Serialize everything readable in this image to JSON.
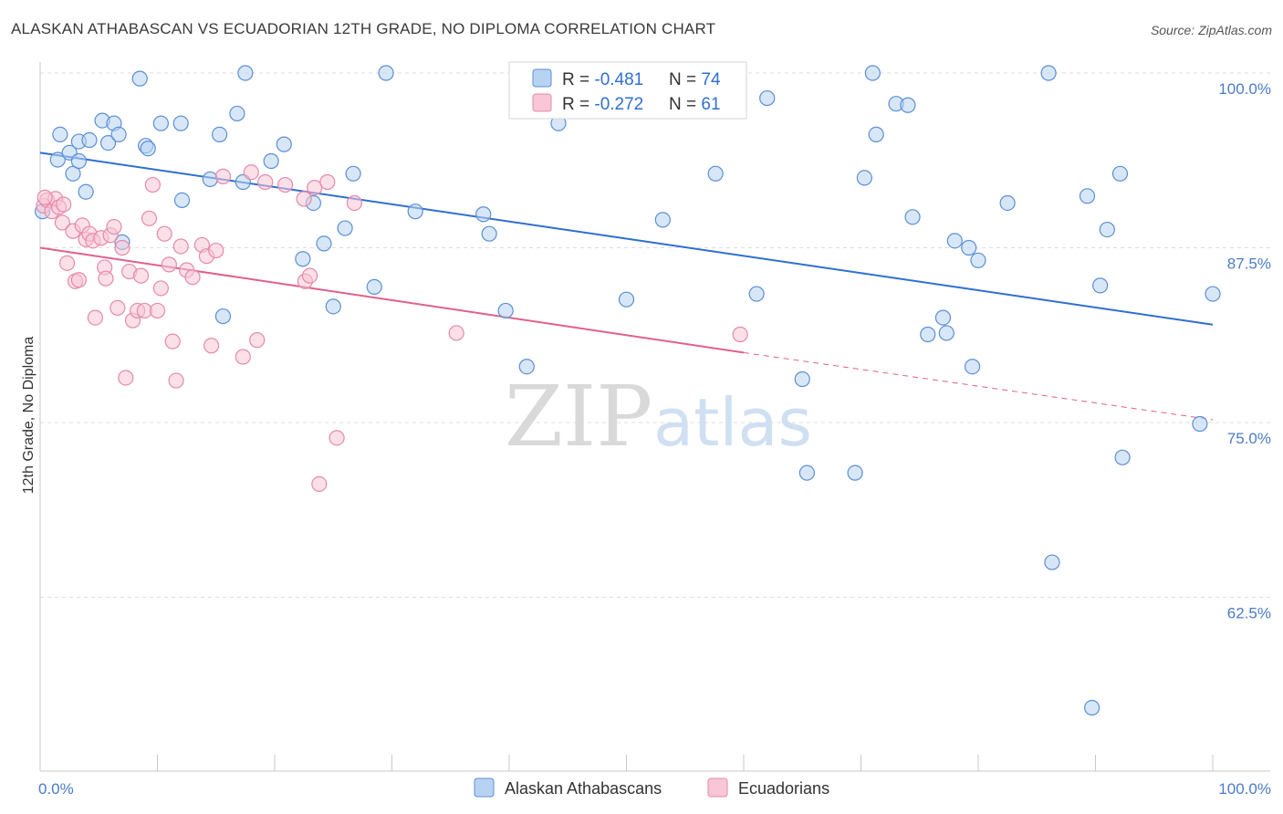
{
  "header": {
    "title": "ALASKAN ATHABASCAN VS ECUADORIAN 12TH GRADE, NO DIPLOMA CORRELATION CHART",
    "source": "Source: ZipAtlas.com"
  },
  "watermark": {
    "zip": "ZIP",
    "atlas": "atlas"
  },
  "colors": {
    "blue_fill": "#b8d3f2",
    "blue_stroke": "#5b8fd6",
    "blue_line": "#2f6fd1",
    "pink_fill": "#f8c6d6",
    "pink_stroke": "#e58aaa",
    "pink_line": "#e0608e",
    "tick_label": "#4a7cc9",
    "grid": "#dddddd"
  },
  "legend": {
    "rows": [
      {
        "r_label": "R = ",
        "r_value": "-0.481",
        "n_label": "N = ",
        "n_value": "74"
      },
      {
        "r_label": "R = ",
        "r_value": "-0.272",
        "n_label": "N = ",
        "n_value": "61"
      }
    ]
  },
  "chart_data": {
    "type": "scatter",
    "title": "ALASKAN ATHABASCAN VS ECUADORIAN 12TH GRADE, NO DIPLOMA CORRELATION CHART",
    "xlabel": "",
    "ylabel": "12th Grade, No Diploma",
    "xlim": [
      0,
      100
    ],
    "ylim": [
      50.5,
      101.5
    ],
    "x_tick_labels": [
      "0.0%",
      "100.0%"
    ],
    "y_ticks": [
      100,
      87.5,
      75,
      62.5
    ],
    "y_tick_labels": [
      "100.0%",
      "87.5%",
      "75.0%",
      "62.5%"
    ],
    "grid": true,
    "legend_placement": "top-center",
    "series": [
      {
        "name": "Alaskan Athabascans",
        "r": -0.481,
        "n": 74,
        "trend": {
          "x": [
            0,
            100
          ],
          "y": [
            94.3,
            82.0
          ],
          "extend_to": 100
        },
        "points": [
          [
            0.2,
            90.1
          ],
          [
            1.5,
            93.8
          ],
          [
            1.7,
            95.6
          ],
          [
            2.5,
            94.3
          ],
          [
            2.8,
            92.8
          ],
          [
            3.3,
            95.1
          ],
          [
            3.9,
            91.5
          ],
          [
            4.2,
            95.2
          ],
          [
            5.3,
            96.6
          ],
          [
            5.8,
            95.0
          ],
          [
            6.3,
            96.4
          ],
          [
            6.7,
            95.6
          ],
          [
            7.0,
            87.9
          ],
          [
            8.5,
            99.6
          ],
          [
            9.0,
            94.8
          ],
          [
            9.2,
            94.6
          ],
          [
            10.3,
            96.4
          ],
          [
            12.0,
            96.4
          ],
          [
            12.1,
            90.9
          ],
          [
            14.5,
            92.4
          ],
          [
            15.3,
            95.6
          ],
          [
            15.6,
            82.6
          ],
          [
            16.8,
            97.1
          ],
          [
            17.3,
            92.2
          ],
          [
            17.5,
            100.0
          ],
          [
            19.7,
            93.7
          ],
          [
            20.8,
            94.9
          ],
          [
            22.4,
            86.7
          ],
          [
            23.3,
            90.7
          ],
          [
            24.2,
            87.8
          ],
          [
            25.0,
            83.3
          ],
          [
            26.0,
            88.9
          ],
          [
            26.7,
            92.8
          ],
          [
            28.5,
            84.7
          ],
          [
            29.5,
            100.0
          ],
          [
            32.0,
            90.1
          ],
          [
            37.8,
            89.9
          ],
          [
            38.3,
            88.5
          ],
          [
            39.7,
            83.0
          ],
          [
            41.5,
            79.0
          ],
          [
            50.0,
            83.8
          ],
          [
            53.1,
            89.5
          ],
          [
            57.6,
            92.8
          ],
          [
            61.1,
            84.2
          ],
          [
            62.0,
            98.2
          ],
          [
            65.0,
            78.1
          ],
          [
            65.4,
            71.4
          ],
          [
            69.5,
            71.4
          ],
          [
            70.3,
            92.5
          ],
          [
            71.0,
            100.0
          ],
          [
            71.3,
            95.6
          ],
          [
            73.0,
            97.8
          ],
          [
            74.0,
            97.7
          ],
          [
            74.4,
            89.7
          ],
          [
            75.7,
            81.3
          ],
          [
            77.0,
            82.5
          ],
          [
            77.3,
            81.4
          ],
          [
            78.0,
            88.0
          ],
          [
            79.2,
            87.5
          ],
          [
            79.5,
            79.0
          ],
          [
            80.0,
            86.6
          ],
          [
            82.5,
            90.7
          ],
          [
            86.0,
            100.0
          ],
          [
            86.3,
            65.0
          ],
          [
            89.3,
            91.2
          ],
          [
            89.7,
            54.6
          ],
          [
            90.4,
            84.8
          ],
          [
            91.0,
            88.8
          ],
          [
            92.1,
            92.8
          ],
          [
            92.3,
            72.5
          ],
          [
            98.9,
            74.9
          ],
          [
            100.0,
            84.2
          ],
          [
            44.2,
            96.4
          ],
          [
            3.3,
            93.7
          ]
        ]
      },
      {
        "name": "Ecuadorians",
        "r": -0.272,
        "n": 61,
        "trend": {
          "x": [
            0,
            60
          ],
          "y": [
            87.5,
            80.0
          ],
          "dashed_to": [
            100,
            75.2
          ]
        },
        "points": [
          [
            0.3,
            90.5
          ],
          [
            0.6,
            90.9
          ],
          [
            1.0,
            90.1
          ],
          [
            1.3,
            91.0
          ],
          [
            1.6,
            90.4
          ],
          [
            1.9,
            89.3
          ],
          [
            2.3,
            86.4
          ],
          [
            2.8,
            88.7
          ],
          [
            3.0,
            85.1
          ],
          [
            3.3,
            85.2
          ],
          [
            3.6,
            89.1
          ],
          [
            3.9,
            88.1
          ],
          [
            4.2,
            88.5
          ],
          [
            4.5,
            88.0
          ],
          [
            4.7,
            82.5
          ],
          [
            5.2,
            88.2
          ],
          [
            5.5,
            86.1
          ],
          [
            5.6,
            85.3
          ],
          [
            6.0,
            88.4
          ],
          [
            6.3,
            89.0
          ],
          [
            6.6,
            83.2
          ],
          [
            7.0,
            87.5
          ],
          [
            7.3,
            78.2
          ],
          [
            7.6,
            85.8
          ],
          [
            7.9,
            82.3
          ],
          [
            8.3,
            83.0
          ],
          [
            8.6,
            85.5
          ],
          [
            8.9,
            83.0
          ],
          [
            9.3,
            89.6
          ],
          [
            9.6,
            92.0
          ],
          [
            10.0,
            83.0
          ],
          [
            10.3,
            84.6
          ],
          [
            10.6,
            88.5
          ],
          [
            11.0,
            86.3
          ],
          [
            11.3,
            80.8
          ],
          [
            11.6,
            78.0
          ],
          [
            12.0,
            87.6
          ],
          [
            12.5,
            85.9
          ],
          [
            13.0,
            85.4
          ],
          [
            13.8,
            87.7
          ],
          [
            14.2,
            86.9
          ],
          [
            14.6,
            80.5
          ],
          [
            15.0,
            87.3
          ],
          [
            15.6,
            92.6
          ],
          [
            17.3,
            79.7
          ],
          [
            18.0,
            92.9
          ],
          [
            18.5,
            80.9
          ],
          [
            19.2,
            92.2
          ],
          [
            20.9,
            92.0
          ],
          [
            22.5,
            91.0
          ],
          [
            22.6,
            85.1
          ],
          [
            23.0,
            85.5
          ],
          [
            23.4,
            91.8
          ],
          [
            24.5,
            92.2
          ],
          [
            25.3,
            73.9
          ],
          [
            23.8,
            70.6
          ],
          [
            26.8,
            90.7
          ],
          [
            35.5,
            81.4
          ],
          [
            59.7,
            81.3
          ],
          [
            0.4,
            91.1
          ],
          [
            2.0,
            90.6
          ]
        ]
      }
    ]
  },
  "bottom_legend": [
    {
      "label": "Alaskan Athabascans"
    },
    {
      "label": "Ecuadorians"
    }
  ]
}
